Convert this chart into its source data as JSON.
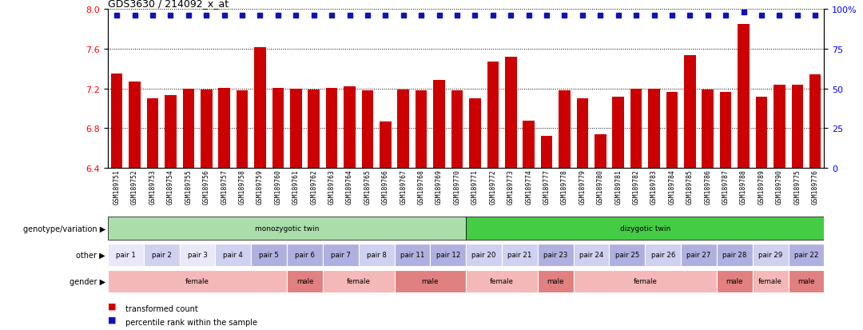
{
  "title": "GDS3630 / 214092_x_at",
  "samples": [
    "GSM189751",
    "GSM189752",
    "GSM189753",
    "GSM189754",
    "GSM189755",
    "GSM189756",
    "GSM189757",
    "GSM189758",
    "GSM189759",
    "GSM189760",
    "GSM189761",
    "GSM189762",
    "GSM189763",
    "GSM189764",
    "GSM189765",
    "GSM189766",
    "GSM189767",
    "GSM189768",
    "GSM189769",
    "GSM189770",
    "GSM189771",
    "GSM189772",
    "GSM189773",
    "GSM189774",
    "GSM189777",
    "GSM189778",
    "GSM189779",
    "GSM189780",
    "GSM189781",
    "GSM189782",
    "GSM189783",
    "GSM189784",
    "GSM189785",
    "GSM189786",
    "GSM189787",
    "GSM189788",
    "GSM189789",
    "GSM189790",
    "GSM189775",
    "GSM189776"
  ],
  "bar_values": [
    7.35,
    7.27,
    7.1,
    7.13,
    7.2,
    7.19,
    7.21,
    7.18,
    7.62,
    7.21,
    7.2,
    7.19,
    7.21,
    7.22,
    7.18,
    6.87,
    7.19,
    7.18,
    7.29,
    7.18,
    7.1,
    7.47,
    7.52,
    6.88,
    6.72,
    7.18,
    7.1,
    6.74,
    7.12,
    7.2,
    7.2,
    7.17,
    7.54,
    7.19,
    7.17,
    7.85,
    7.12,
    7.24,
    7.24,
    7.34
  ],
  "percentile_values": [
    96,
    96,
    96,
    96,
    96,
    96,
    96,
    96,
    96,
    96,
    96,
    96,
    96,
    96,
    96,
    96,
    96,
    96,
    96,
    96,
    96,
    96,
    96,
    96,
    96,
    96,
    96,
    96,
    96,
    96,
    96,
    96,
    96,
    96,
    96,
    98,
    96,
    96,
    96,
    96
  ],
  "ylim_left": [
    6.4,
    8.0
  ],
  "ylim_right": [
    0,
    100
  ],
  "yticks_left": [
    6.4,
    6.8,
    7.2,
    7.6,
    8.0
  ],
  "yticks_right": [
    0,
    25,
    50,
    75,
    100
  ],
  "bar_color": "#cc0000",
  "dot_color": "#1111bb",
  "background_color": "#ffffff",
  "genotype": {
    "monozygotic": {
      "start": 0,
      "end": 20,
      "label": "monozygotic twin",
      "color": "#aaddaa"
    },
    "dizygotic": {
      "start": 20,
      "end": 40,
      "label": "dizygotic twin",
      "color": "#44cc44"
    }
  },
  "pairs": [
    {
      "label": "pair 1",
      "start": 0,
      "end": 2,
      "color": "#e8e8f8"
    },
    {
      "label": "pair 2",
      "start": 2,
      "end": 4,
      "color": "#d0d0f0"
    },
    {
      "label": "pair 3",
      "start": 4,
      "end": 6,
      "color": "#e8e8f8"
    },
    {
      "label": "pair 4",
      "start": 6,
      "end": 8,
      "color": "#d0d0f0"
    },
    {
      "label": "pair 5",
      "start": 8,
      "end": 10,
      "color": "#b0b0e0"
    },
    {
      "label": "pair 6",
      "start": 10,
      "end": 12,
      "color": "#b0b0e0"
    },
    {
      "label": "pair 7",
      "start": 12,
      "end": 14,
      "color": "#b0b0e0"
    },
    {
      "label": "pair 8",
      "start": 14,
      "end": 16,
      "color": "#d0d0f0"
    },
    {
      "label": "pair 11",
      "start": 16,
      "end": 18,
      "color": "#b0b0e0"
    },
    {
      "label": "pair 12",
      "start": 18,
      "end": 20,
      "color": "#b0b0e0"
    },
    {
      "label": "pair 20",
      "start": 20,
      "end": 22,
      "color": "#d0d0f0"
    },
    {
      "label": "pair 21",
      "start": 22,
      "end": 24,
      "color": "#d0d0f0"
    },
    {
      "label": "pair 23",
      "start": 24,
      "end": 26,
      "color": "#b0b0e0"
    },
    {
      "label": "pair 24",
      "start": 26,
      "end": 28,
      "color": "#d0d0f0"
    },
    {
      "label": "pair 25",
      "start": 28,
      "end": 30,
      "color": "#b0b0e0"
    },
    {
      "label": "pair 26",
      "start": 30,
      "end": 32,
      "color": "#d0d0f0"
    },
    {
      "label": "pair 27",
      "start": 32,
      "end": 34,
      "color": "#b0b0e0"
    },
    {
      "label": "pair 28",
      "start": 34,
      "end": 36,
      "color": "#b0b0e0"
    },
    {
      "label": "pair 29",
      "start": 36,
      "end": 38,
      "color": "#d0d0f0"
    },
    {
      "label": "pair 22",
      "start": 38,
      "end": 40,
      "color": "#b0b0e0"
    }
  ],
  "gender": [
    {
      "label": "female",
      "start": 0,
      "end": 10,
      "color": "#f4b8b8"
    },
    {
      "label": "male",
      "start": 10,
      "end": 12,
      "color": "#e08080"
    },
    {
      "label": "female",
      "start": 12,
      "end": 16,
      "color": "#f4b8b8"
    },
    {
      "label": "male",
      "start": 16,
      "end": 20,
      "color": "#e08080"
    },
    {
      "label": "female",
      "start": 20,
      "end": 24,
      "color": "#f4b8b8"
    },
    {
      "label": "male",
      "start": 24,
      "end": 26,
      "color": "#e08080"
    },
    {
      "label": "female",
      "start": 26,
      "end": 34,
      "color": "#f4b8b8"
    },
    {
      "label": "male",
      "start": 34,
      "end": 36,
      "color": "#e08080"
    },
    {
      "label": "female",
      "start": 36,
      "end": 38,
      "color": "#f4b8b8"
    },
    {
      "label": "male",
      "start": 38,
      "end": 40,
      "color": "#e08080"
    }
  ],
  "legend": [
    {
      "label": "transformed count",
      "color": "#cc0000"
    },
    {
      "label": "percentile rank within the sample",
      "color": "#1111bb"
    }
  ]
}
